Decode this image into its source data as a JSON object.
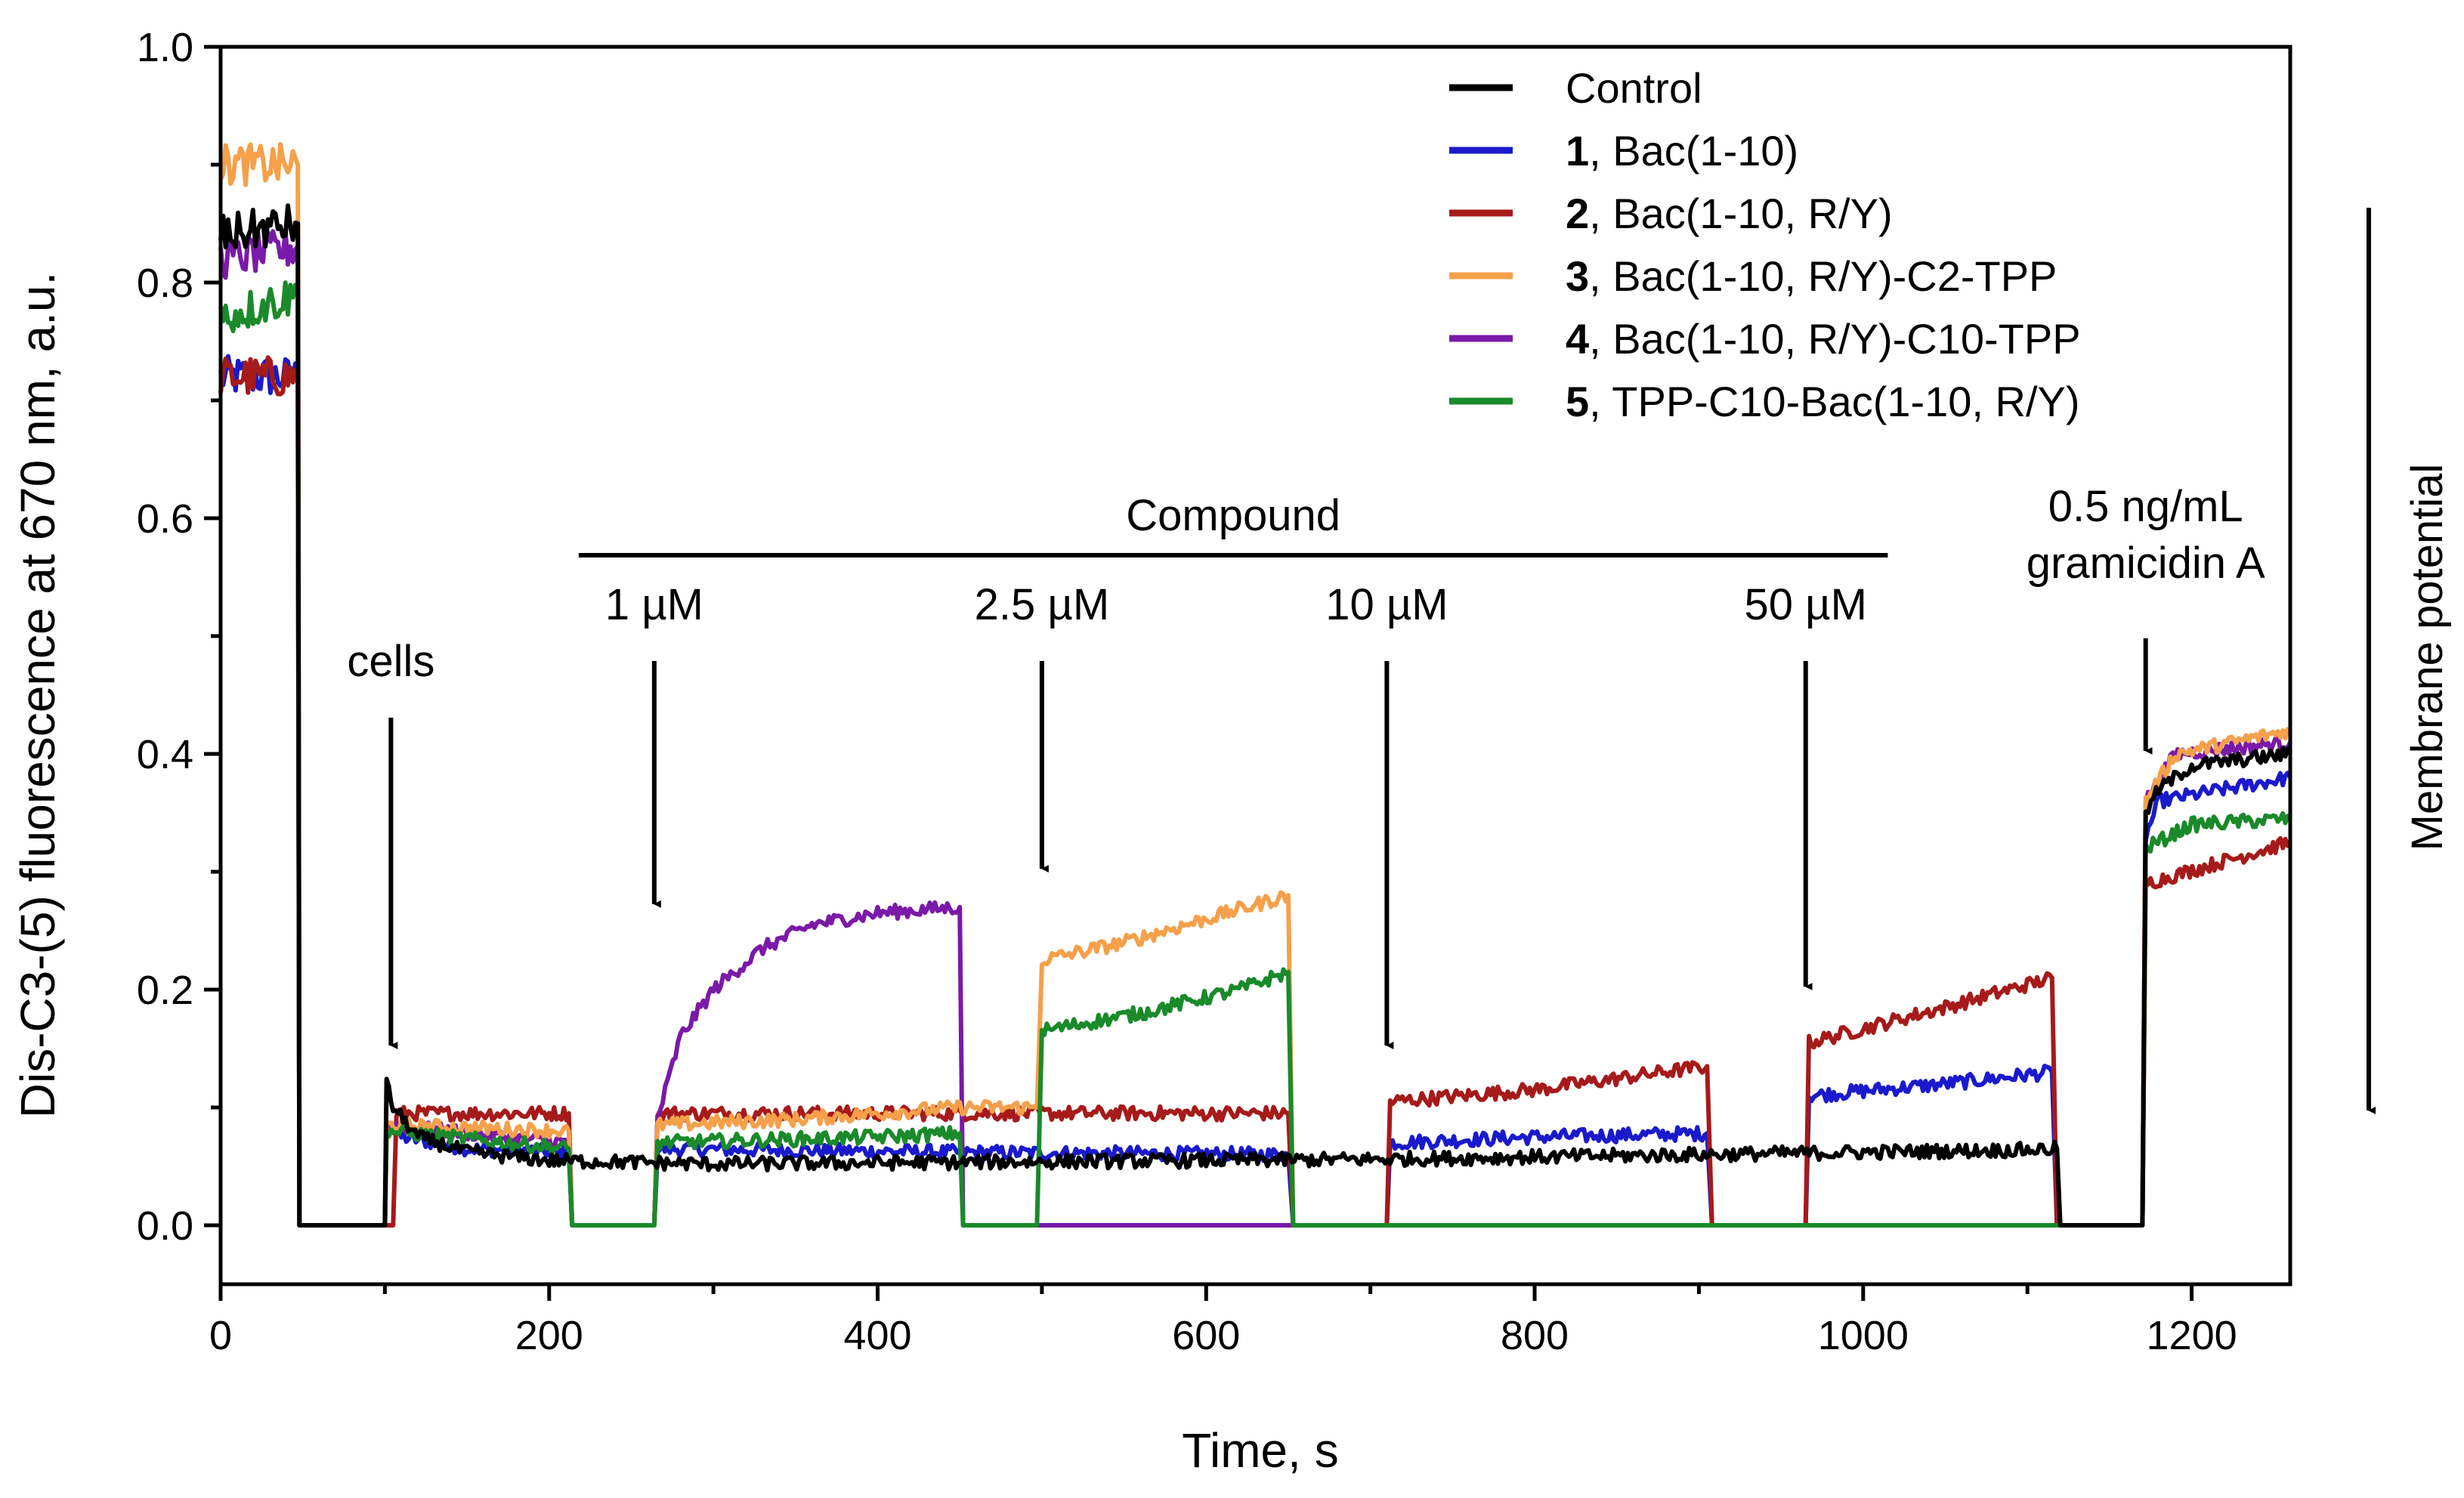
{
  "chart_data": {
    "type": "line",
    "xlabel": "Time, s",
    "ylabel": "Dis-C3-(5) fluorescence at 670 nm, a.u.",
    "xlim": [
      0,
      1260
    ],
    "ylim": [
      -0.05,
      1.0
    ],
    "x_ticks": [
      0,
      200,
      400,
      600,
      800,
      1000,
      1200
    ],
    "x_tick_labels": [
      "0",
      "200",
      "400",
      "600",
      "800",
      "1000",
      "1200"
    ],
    "y_ticks": [
      0.0,
      0.2,
      0.4,
      0.6,
      0.8,
      1.0
    ],
    "y_tick_labels": [
      "0.0",
      "0.2",
      "0.4",
      "0.6",
      "0.8",
      "1.0"
    ],
    "grid": false,
    "legend_placement": "top-right",
    "series": [
      {
        "num": "",
        "label": "Control",
        "color": "#000000",
        "points": [
          [
            0,
            0.84
          ],
          [
            47,
            0.85
          ],
          [
            48,
            0
          ],
          [
            100,
            0
          ],
          [
            101,
            0.12
          ],
          [
            105,
            0.1
          ],
          [
            120,
            0.075
          ],
          [
            150,
            0.062
          ],
          [
            200,
            0.055
          ],
          [
            300,
            0.052
          ],
          [
            400,
            0.053
          ],
          [
            500,
            0.054
          ],
          [
            600,
            0.055
          ],
          [
            700,
            0.056
          ],
          [
            800,
            0.058
          ],
          [
            900,
            0.06
          ],
          [
            1000,
            0.062
          ],
          [
            1100,
            0.064
          ],
          [
            1118,
            0.065
          ],
          [
            1120,
            0
          ],
          [
            1170,
            0
          ],
          [
            1172,
            0.35
          ],
          [
            1180,
            0.37
          ],
          [
            1200,
            0.39
          ],
          [
            1260,
            0.4
          ]
        ]
      },
      {
        "num": "1",
        "label": ", Bac(1-10)",
        "color": "#1a1acc",
        "points": [
          [
            0,
            0.72
          ],
          [
            47,
            0.72
          ],
          [
            48,
            0
          ],
          [
            100,
            0
          ],
          [
            101,
            0.09
          ],
          [
            110,
            0.075
          ],
          [
            150,
            0.065
          ],
          [
            212,
            0.062
          ],
          [
            214,
            0
          ],
          [
            264,
            0
          ],
          [
            266,
            0.065
          ],
          [
            450,
            0.062
          ],
          [
            650,
            0.06
          ],
          [
            653,
            0
          ],
          [
            710,
            0
          ],
          [
            712,
            0.07
          ],
          [
            800,
            0.075
          ],
          [
            905,
            0.078
          ],
          [
            908,
            0
          ],
          [
            965,
            0
          ],
          [
            967,
            0.11
          ],
          [
            1050,
            0.12
          ],
          [
            1115,
            0.13
          ],
          [
            1118,
            0
          ],
          [
            1170,
            0
          ],
          [
            1172,
            0.33
          ],
          [
            1180,
            0.36
          ],
          [
            1260,
            0.38
          ]
        ]
      },
      {
        "num": "2",
        "label": ", Bac(1-10, R/Y)",
        "color": "#a61a1a",
        "points": [
          [
            0,
            0.72
          ],
          [
            47,
            0.72
          ],
          [
            48,
            0
          ],
          [
            105,
            0
          ],
          [
            107,
            0.095
          ],
          [
            212,
            0.095
          ],
          [
            214,
            0
          ],
          [
            264,
            0
          ],
          [
            266,
            0.095
          ],
          [
            650,
            0.095
          ],
          [
            653,
            0
          ],
          [
            710,
            0
          ],
          [
            712,
            0.105
          ],
          [
            800,
            0.115
          ],
          [
            905,
            0.135
          ],
          [
            908,
            0
          ],
          [
            965,
            0
          ],
          [
            967,
            0.155
          ],
          [
            1050,
            0.185
          ],
          [
            1115,
            0.21
          ],
          [
            1118,
            0
          ],
          [
            1170,
            0
          ],
          [
            1172,
            0.29
          ],
          [
            1260,
            0.325
          ]
        ]
      },
      {
        "num": "3",
        "label": ", Bac(1-10, R/Y)-C2-TPP",
        "color": "#f5a04a",
        "points": [
          [
            0,
            0.9
          ],
          [
            47,
            0.9
          ],
          [
            48,
            0
          ],
          [
            100,
            0
          ],
          [
            101,
            0.085
          ],
          [
            212,
            0.08
          ],
          [
            214,
            0
          ],
          [
            264,
            0
          ],
          [
            266,
            0.085
          ],
          [
            350,
            0.09
          ],
          [
            450,
            0.1
          ],
          [
            497,
            0.1
          ],
          [
            500,
            0.225
          ],
          [
            550,
            0.24
          ],
          [
            600,
            0.26
          ],
          [
            650,
            0.28
          ],
          [
            653,
            0
          ],
          [
            1170,
            0
          ],
          [
            1172,
            0.36
          ],
          [
            1190,
            0.4
          ],
          [
            1260,
            0.42
          ]
        ]
      },
      {
        "num": "4",
        "label": ", Bac(1-10, R/Y)-C10-TPP",
        "color": "#7a1aa8",
        "points": [
          [
            0,
            0.82
          ],
          [
            47,
            0.83
          ],
          [
            48,
            0
          ],
          [
            100,
            0
          ],
          [
            101,
            0.085
          ],
          [
            212,
            0.07
          ],
          [
            214,
            0
          ],
          [
            264,
            0
          ],
          [
            266,
            0.09
          ],
          [
            280,
            0.16
          ],
          [
            300,
            0.2
          ],
          [
            330,
            0.235
          ],
          [
            360,
            0.255
          ],
          [
            400,
            0.265
          ],
          [
            450,
            0.27
          ],
          [
            452,
            0
          ],
          [
            1170,
            0
          ],
          [
            1172,
            0.36
          ],
          [
            1190,
            0.4
          ],
          [
            1260,
            0.41
          ]
        ]
      },
      {
        "num": "5",
        "label": ", TPP-C10-Bac(1-10, R/Y)",
        "color": "#1a8a2a",
        "points": [
          [
            0,
            0.77
          ],
          [
            47,
            0.79
          ],
          [
            48,
            0
          ],
          [
            100,
            0
          ],
          [
            101,
            0.08
          ],
          [
            212,
            0.065
          ],
          [
            214,
            0
          ],
          [
            264,
            0
          ],
          [
            266,
            0.07
          ],
          [
            400,
            0.075
          ],
          [
            450,
            0.078
          ],
          [
            452,
            0
          ],
          [
            497,
            0
          ],
          [
            500,
            0.165
          ],
          [
            560,
            0.18
          ],
          [
            620,
            0.2
          ],
          [
            650,
            0.215
          ],
          [
            653,
            0
          ],
          [
            1170,
            0
          ],
          [
            1172,
            0.32
          ],
          [
            1200,
            0.34
          ],
          [
            1260,
            0.345
          ]
        ]
      }
    ],
    "annotations": {
      "compound_label": "Compound",
      "compound_bar": [
        218,
        1015
      ],
      "cells": {
        "label": "cells",
        "x": 100,
        "y": 0.15
      },
      "doses": [
        {
          "label": "1 µM",
          "x": 264,
          "y": 0.27
        },
        {
          "label": "2.5 µM",
          "x": 500,
          "y": 0.3
        },
        {
          "label": "10 µM",
          "x": 710,
          "y": 0.15
        },
        {
          "label": "50 µM",
          "x": 965,
          "y": 0.2
        }
      ],
      "gramicidin": {
        "line1": "0.5 ng/mL",
        "line2": "gramicidin A",
        "x": 1172,
        "y": 0.4
      },
      "membrane_potential": "Membrane potential"
    }
  }
}
